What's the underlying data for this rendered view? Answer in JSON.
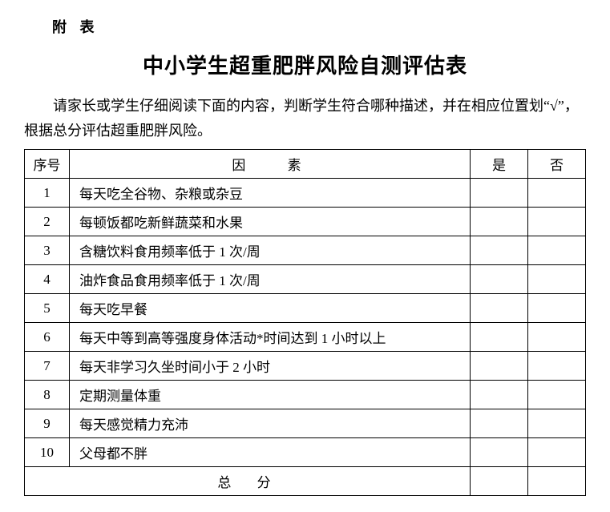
{
  "attachment_label": "附 表",
  "title": "中小学生超重肥胖风险自测评估表",
  "instructions": "请家长或学生仔细阅读下面的内容，判断学生符合哪种描述，并在相应位置划“√”，根据总分评估超重肥胖风险。",
  "table": {
    "headers": {
      "num": "序号",
      "factor": "因   素",
      "yes": "是",
      "no": "否"
    },
    "rows": [
      {
        "num": "1",
        "factor": "每天吃全谷物、杂粮或杂豆",
        "yes": "",
        "no": ""
      },
      {
        "num": "2",
        "factor": "每顿饭都吃新鲜蔬菜和水果",
        "yes": "",
        "no": ""
      },
      {
        "num": "3",
        "factor": "含糖饮料食用频率低于 1 次/周",
        "yes": "",
        "no": ""
      },
      {
        "num": "4",
        "factor": "油炸食品食用频率低于 1 次/周",
        "yes": "",
        "no": ""
      },
      {
        "num": "5",
        "factor": "每天吃早餐",
        "yes": "",
        "no": ""
      },
      {
        "num": "6",
        "factor": "每天中等到高等强度身体活动*时间达到 1 小时以上",
        "yes": "",
        "no": ""
      },
      {
        "num": "7",
        "factor": "每天非学习久坐时间小于 2 小时",
        "yes": "",
        "no": ""
      },
      {
        "num": "8",
        "factor": "定期测量体重",
        "yes": "",
        "no": ""
      },
      {
        "num": "9",
        "factor": "每天感觉精力充沛",
        "yes": "",
        "no": ""
      },
      {
        "num": "10",
        "factor": "父母都不胖",
        "yes": "",
        "no": ""
      }
    ],
    "total_label": "总  分",
    "total_yes": "",
    "total_no": ""
  },
  "colors": {
    "text": "#000000",
    "background": "#ffffff",
    "border": "#000000"
  }
}
